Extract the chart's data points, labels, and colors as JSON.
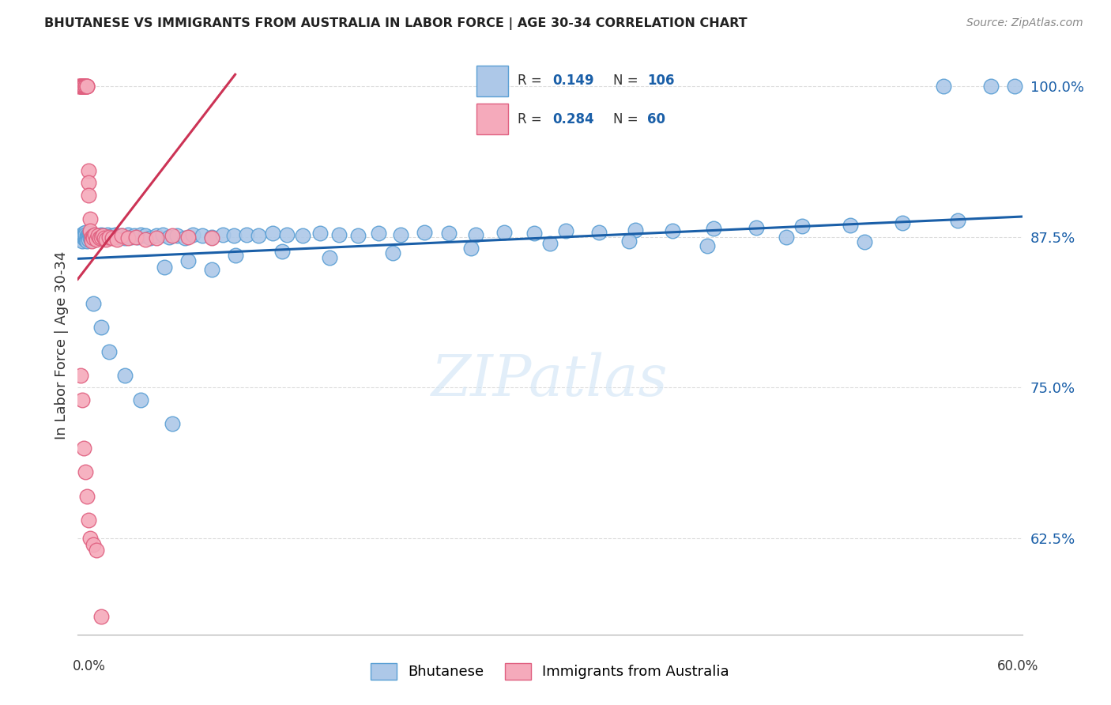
{
  "title": "BHUTANESE VS IMMIGRANTS FROM AUSTRALIA IN LABOR FORCE | AGE 30-34 CORRELATION CHART",
  "source": "Source: ZipAtlas.com",
  "ylabel": "In Labor Force | Age 30-34",
  "ytick_labels": [
    "100.0%",
    "87.5%",
    "75.0%",
    "62.5%"
  ],
  "ytick_values": [
    1.0,
    0.875,
    0.75,
    0.625
  ],
  "xmin": 0.0,
  "xmax": 0.6,
  "ymin": 0.545,
  "ymax": 1.025,
  "blue_R": 0.149,
  "blue_N": 106,
  "pink_R": 0.284,
  "pink_N": 60,
  "blue_color": "#adc8e8",
  "pink_color": "#f5aabb",
  "blue_edge_color": "#5a9fd4",
  "pink_edge_color": "#e06080",
  "blue_line_color": "#1a5fa8",
  "pink_line_color": "#cc3355",
  "legend_label_blue": "Bhutanese",
  "legend_label_pink": "Immigrants from Australia",
  "watermark": "ZIPatlas",
  "title_color": "#222222",
  "source_color": "#888888",
  "ylabel_color": "#333333",
  "grid_color": "#dddddd",
  "ytick_color": "#1a5fa8",
  "blue_scatter_x": [
    0.001,
    0.002,
    0.002,
    0.003,
    0.003,
    0.003,
    0.003,
    0.004,
    0.004,
    0.004,
    0.005,
    0.005,
    0.005,
    0.005,
    0.006,
    0.006,
    0.006,
    0.007,
    0.007,
    0.007,
    0.008,
    0.008,
    0.008,
    0.009,
    0.009,
    0.01,
    0.01,
    0.011,
    0.012,
    0.013,
    0.014,
    0.015,
    0.016,
    0.017,
    0.018,
    0.019,
    0.02,
    0.022,
    0.024,
    0.026,
    0.028,
    0.03,
    0.032,
    0.034,
    0.036,
    0.038,
    0.04,
    0.043,
    0.046,
    0.05,
    0.054,
    0.058,
    0.063,
    0.068,
    0.073,
    0.079,
    0.085,
    0.092,
    0.099,
    0.107,
    0.115,
    0.124,
    0.133,
    0.143,
    0.154,
    0.166,
    0.178,
    0.191,
    0.205,
    0.22,
    0.236,
    0.253,
    0.271,
    0.29,
    0.31,
    0.331,
    0.354,
    0.378,
    0.404,
    0.431,
    0.46,
    0.491,
    0.524,
    0.559,
    0.055,
    0.07,
    0.085,
    0.1,
    0.13,
    0.16,
    0.2,
    0.25,
    0.3,
    0.35,
    0.4,
    0.45,
    0.5,
    0.55,
    0.58,
    0.595,
    0.01,
    0.015,
    0.02,
    0.03,
    0.04,
    0.06
  ],
  "blue_scatter_y": [
    0.875,
    0.876,
    0.874,
    0.877,
    0.873,
    0.875,
    0.872,
    0.878,
    0.874,
    0.876,
    0.879,
    0.873,
    0.875,
    0.877,
    0.876,
    0.874,
    0.872,
    0.877,
    0.875,
    0.873,
    0.876,
    0.874,
    0.878,
    0.875,
    0.873,
    0.876,
    0.874,
    0.877,
    0.875,
    0.876,
    0.874,
    0.877,
    0.875,
    0.876,
    0.874,
    0.877,
    0.875,
    0.876,
    0.877,
    0.875,
    0.876,
    0.874,
    0.877,
    0.875,
    0.876,
    0.875,
    0.877,
    0.876,
    0.874,
    0.876,
    0.877,
    0.875,
    0.876,
    0.874,
    0.877,
    0.876,
    0.875,
    0.877,
    0.876,
    0.877,
    0.876,
    0.878,
    0.877,
    0.876,
    0.878,
    0.877,
    0.876,
    0.878,
    0.877,
    0.879,
    0.878,
    0.877,
    0.879,
    0.878,
    0.88,
    0.879,
    0.881,
    0.88,
    0.882,
    0.883,
    0.884,
    0.885,
    0.887,
    0.889,
    0.85,
    0.855,
    0.848,
    0.86,
    0.863,
    0.858,
    0.862,
    0.866,
    0.87,
    0.872,
    0.868,
    0.875,
    0.871,
    1.0,
    1.0,
    1.0,
    0.82,
    0.8,
    0.78,
    0.76,
    0.74,
    0.72
  ],
  "pink_scatter_x": [
    0.001,
    0.001,
    0.002,
    0.002,
    0.002,
    0.003,
    0.003,
    0.003,
    0.003,
    0.003,
    0.003,
    0.004,
    0.004,
    0.004,
    0.004,
    0.004,
    0.005,
    0.005,
    0.005,
    0.006,
    0.006,
    0.006,
    0.007,
    0.007,
    0.007,
    0.008,
    0.008,
    0.009,
    0.009,
    0.01,
    0.01,
    0.011,
    0.012,
    0.013,
    0.014,
    0.015,
    0.016,
    0.017,
    0.018,
    0.02,
    0.022,
    0.025,
    0.028,
    0.032,
    0.037,
    0.043,
    0.05,
    0.06,
    0.07,
    0.085,
    0.002,
    0.003,
    0.004,
    0.005,
    0.006,
    0.007,
    0.008,
    0.01,
    0.012,
    0.015
  ],
  "pink_scatter_y": [
    1.0,
    1.0,
    1.0,
    1.0,
    1.0,
    1.0,
    1.0,
    1.0,
    1.0,
    1.0,
    1.0,
    1.0,
    1.0,
    1.0,
    1.0,
    1.0,
    1.0,
    1.0,
    1.0,
    1.0,
    1.0,
    1.0,
    0.93,
    0.92,
    0.91,
    0.89,
    0.88,
    0.875,
    0.872,
    0.876,
    0.874,
    0.877,
    0.873,
    0.876,
    0.874,
    0.875,
    0.876,
    0.874,
    0.873,
    0.875,
    0.874,
    0.873,
    0.876,
    0.874,
    0.875,
    0.873,
    0.874,
    0.876,
    0.875,
    0.874,
    0.76,
    0.74,
    0.7,
    0.68,
    0.66,
    0.64,
    0.625,
    0.62,
    0.615,
    0.56
  ],
  "blue_trend_x0": 0.0,
  "blue_trend_x1": 0.6,
  "blue_trend_y0": 0.857,
  "blue_trend_y1": 0.892,
  "pink_trend_x0": 0.0,
  "pink_trend_x1": 0.1,
  "pink_trend_y0": 0.84,
  "pink_trend_y1": 1.01
}
